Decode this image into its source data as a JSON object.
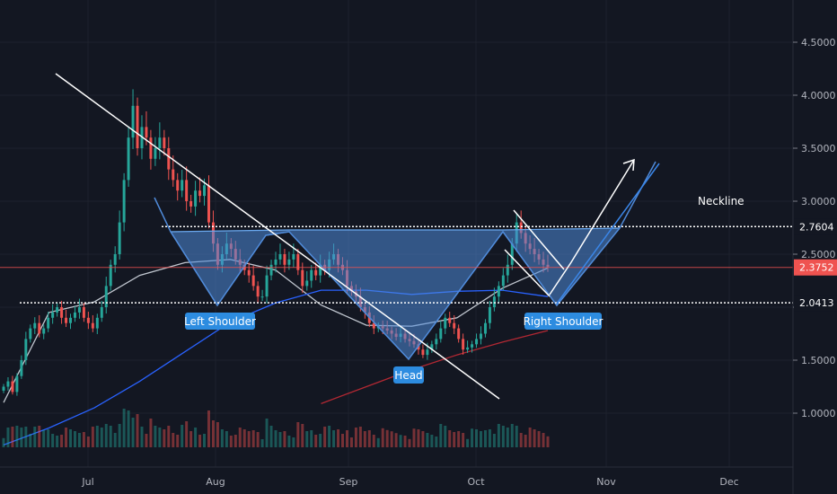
{
  "chart_data": {
    "type": "candlestick",
    "symbol": "",
    "y_ticks": [
      1.0,
      1.5,
      2.0,
      2.5,
      3.0,
      3.5,
      4.0,
      4.5
    ],
    "y_tick_labels": [
      "1.0000",
      "1.5000",
      "2.0000",
      "2.5000",
      "3.0000",
      "3.5000",
      "4.0000",
      "4.5000"
    ],
    "x_tick_labels": [
      "Jul",
      "Aug",
      "Sep",
      "Oct",
      "Nov",
      "Dec"
    ],
    "price_labels": [
      {
        "value": 2.7604,
        "label": "2.7604",
        "style": "dark"
      },
      {
        "value": 2.3752,
        "label": "2.3752",
        "style": "last"
      },
      {
        "value": 2.0413,
        "label": "2.0413",
        "style": "dark"
      }
    ],
    "last_price": 2.3752,
    "levels": {
      "neckline": 2.7604,
      "support": 2.0413,
      "last": 2.3752
    },
    "annotations": {
      "neckline": "Neckline",
      "left_shoulder": "Left Shoulder",
      "head": "Head",
      "right_shoulder": "Right Shoulder"
    },
    "closes": [
      1.25,
      1.3,
      1.2,
      1.35,
      1.5,
      1.7,
      1.8,
      1.85,
      1.75,
      1.8,
      1.9,
      1.95,
      2.0,
      1.9,
      1.85,
      1.9,
      1.95,
      2.0,
      1.9,
      1.85,
      1.8,
      1.9,
      2.0,
      2.2,
      2.4,
      2.5,
      2.8,
      3.2,
      3.6,
      3.9,
      3.5,
      3.7,
      3.6,
      3.4,
      3.5,
      3.6,
      3.5,
      3.3,
      3.2,
      3.1,
      3.2,
      3.0,
      2.95,
      3.1,
      3.05,
      3.15,
      2.8,
      2.6,
      2.4,
      2.5,
      2.6,
      2.55,
      2.45,
      2.4,
      2.35,
      2.3,
      2.2,
      2.1,
      2.1,
      2.3,
      2.4,
      2.45,
      2.5,
      2.4,
      2.45,
      2.5,
      2.35,
      2.2,
      2.25,
      2.35,
      2.3,
      2.4,
      2.35,
      2.45,
      2.5,
      2.4,
      2.35,
      2.2,
      2.15,
      2.1,
      2.0,
      1.95,
      1.85,
      1.8,
      1.82,
      1.8,
      1.78,
      1.75,
      1.72,
      1.75,
      1.7,
      1.68,
      1.65,
      1.6,
      1.55,
      1.6,
      1.65,
      1.7,
      1.8,
      1.9,
      1.85,
      1.8,
      1.7,
      1.6,
      1.62,
      1.65,
      1.7,
      1.75,
      1.85,
      2.0,
      2.1,
      2.2,
      2.3,
      2.4,
      2.6,
      2.8,
      2.7,
      2.6,
      2.55,
      2.5,
      2.45,
      2.4,
      2.38
    ],
    "moving_averages": [
      {
        "color": "#c0c6cf",
        "values": [
          1.1,
          1.95,
          2.05,
          2.3,
          2.42,
          2.45,
          2.35,
          2.02,
          1.83,
          1.82,
          1.9,
          2.18,
          2.37
        ]
      },
      {
        "color": "#2962ff",
        "values": [
          0.7,
          0.86,
          1.05,
          1.3,
          1.58,
          1.86,
          2.04,
          2.16,
          2.16,
          2.12,
          2.15,
          2.16,
          2.1
        ]
      },
      {
        "color": "#b22833",
        "values": [
          null,
          null,
          null,
          null,
          null,
          null,
          null,
          1.09,
          1.25,
          1.41,
          1.55,
          1.67,
          1.78
        ]
      }
    ]
  }
}
